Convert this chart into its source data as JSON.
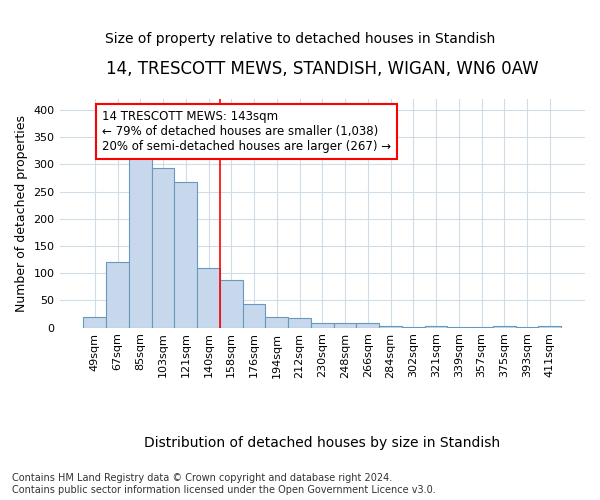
{
  "title": "14, TRESCOTT MEWS, STANDISH, WIGAN, WN6 0AW",
  "subtitle": "Size of property relative to detached houses in Standish",
  "xlabel": "Distribution of detached houses by size in Standish",
  "ylabel": "Number of detached properties",
  "footnote": "Contains HM Land Registry data © Crown copyright and database right 2024.\nContains public sector information licensed under the Open Government Licence v3.0.",
  "categories": [
    "49sqm",
    "67sqm",
    "85sqm",
    "103sqm",
    "121sqm",
    "140sqm",
    "158sqm",
    "176sqm",
    "194sqm",
    "212sqm",
    "230sqm",
    "248sqm",
    "266sqm",
    "284sqm",
    "302sqm",
    "321sqm",
    "339sqm",
    "357sqm",
    "375sqm",
    "393sqm",
    "411sqm"
  ],
  "values": [
    20,
    120,
    315,
    293,
    267,
    110,
    88,
    43,
    20,
    17,
    8,
    8,
    8,
    4,
    2,
    4,
    1,
    1,
    4,
    1,
    3
  ],
  "bar_color": "#c8d8ec",
  "bar_edge_color": "#6699bb",
  "vline_index": 5,
  "annotation_text": "14 TRESCOTT MEWS: 143sqm\n← 79% of detached houses are smaller (1,038)\n20% of semi-detached houses are larger (267) →",
  "ylim": [
    0,
    420
  ],
  "yticks": [
    0,
    50,
    100,
    150,
    200,
    250,
    300,
    350,
    400
  ],
  "background_color": "#ffffff",
  "plot_background_color": "#ffffff",
  "grid_color": "#d0dce8",
  "title_fontsize": 12,
  "subtitle_fontsize": 10,
  "tick_fontsize": 8,
  "ylabel_fontsize": 9,
  "xlabel_fontsize": 10,
  "annotation_fontsize": 8.5,
  "footnote_fontsize": 7
}
